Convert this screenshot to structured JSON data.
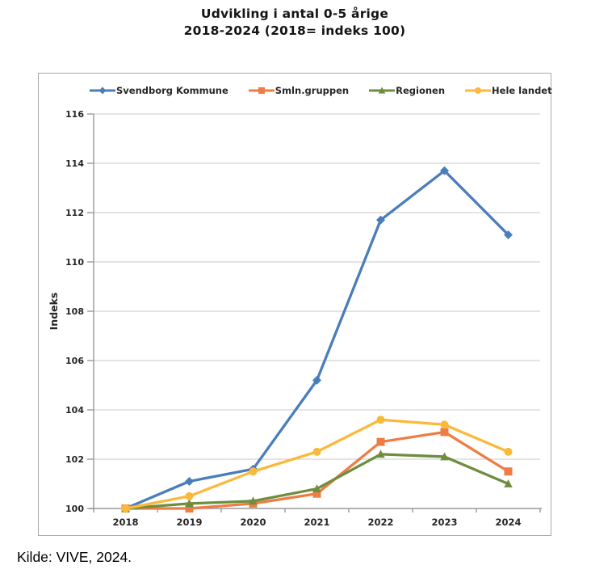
{
  "title": {
    "line1": "Udvikling i antal 0-5 årige",
    "line2": "2018-2024 (2018= indeks 100)"
  },
  "source": "Kilde: VIVE, 2024.",
  "chart_data": {
    "type": "line",
    "title": "Udvikling i antal 0-5 årige 2018-2024 (2018= indeks 100)",
    "categories": [
      "2018",
      "2019",
      "2020",
      "2021",
      "2022",
      "2023",
      "2024"
    ],
    "series": [
      {
        "name": "Svendborg Kommune",
        "color": "#4a7ebb",
        "marker": "diamond",
        "values": [
          100,
          101.1,
          101.6,
          105.2,
          111.7,
          113.7,
          111.1
        ]
      },
      {
        "name": "Smln.gruppen",
        "color": "#ed7d45",
        "marker": "square",
        "values": [
          100,
          100.0,
          100.2,
          100.6,
          102.7,
          103.1,
          101.5
        ]
      },
      {
        "name": "Regionen",
        "color": "#6e8e3e",
        "marker": "triangle",
        "values": [
          100,
          100.2,
          100.3,
          100.8,
          102.2,
          102.1,
          101.0
        ]
      },
      {
        "name": "Hele landet",
        "color": "#fbb93c",
        "marker": "circle",
        "values": [
          100,
          100.5,
          101.5,
          102.3,
          103.6,
          103.4,
          102.3
        ]
      }
    ],
    "xlabel": "",
    "ylabel": "Indeks",
    "ylim": [
      100,
      116
    ],
    "ytick_step": 2,
    "grid": "horizontal",
    "legend_position": "top"
  },
  "colors": {
    "axis": "#999999",
    "gridline": "#c9c9c9",
    "chart_border": "#a9a9a9",
    "text": "#262626"
  }
}
